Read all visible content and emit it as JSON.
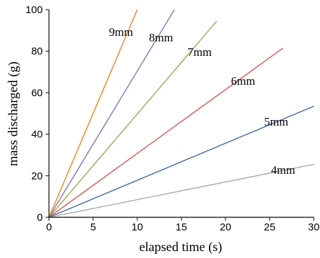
{
  "chart_data": {
    "type": "line",
    "title": "",
    "xlabel": "elapsed time (s)",
    "ylabel": "mass discharged (g)",
    "xlim": [
      0,
      30
    ],
    "ylim": [
      0,
      100
    ],
    "xticks": [
      0,
      5,
      10,
      15,
      20,
      25,
      30
    ],
    "yticks": [
      0,
      20,
      40,
      60,
      80,
      100
    ],
    "grid": false,
    "legend": "none",
    "series": [
      {
        "name": "9mm",
        "color": "#f07f1e",
        "x": [
          0,
          10.0
        ],
        "y": [
          0,
          100
        ]
      },
      {
        "name": "8mm",
        "color": "#8f6bbf",
        "x": [
          0,
          14.2
        ],
        "y": [
          0,
          100
        ]
      },
      {
        "name": "7mm",
        "color": "#8fae52",
        "x": [
          0,
          19.0
        ],
        "y": [
          0,
          94.5
        ]
      },
      {
        "name": "6mm",
        "color": "#d6524f",
        "x": [
          0,
          26.5
        ],
        "y": [
          0,
          81.5
        ]
      },
      {
        "name": "5mm",
        "color": "#3a63a6",
        "x": [
          0,
          30.0
        ],
        "y": [
          0,
          53.5
        ]
      },
      {
        "name": "4mm",
        "color": "#a6a6a6",
        "x": [
          0,
          30.0
        ],
        "y": [
          0,
          25.5
        ]
      }
    ]
  }
}
